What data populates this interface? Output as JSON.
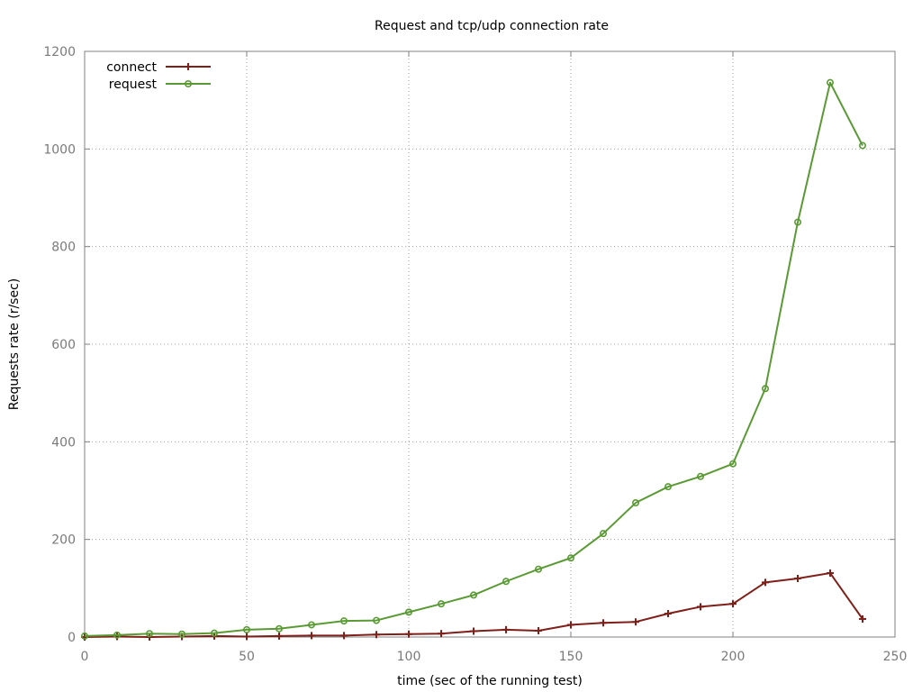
{
  "chart_data": {
    "type": "line",
    "title": "Request and tcp/udp connection rate",
    "xlabel": "time (sec of the running test)",
    "ylabel": "Requests rate (r/sec)",
    "xlim": [
      0,
      250
    ],
    "ylim": [
      0,
      1200
    ],
    "xticks": [
      0,
      50,
      100,
      150,
      200,
      250
    ],
    "yticks": [
      0,
      200,
      400,
      600,
      800,
      1000,
      1200
    ],
    "grid": true,
    "legend_position": "top-left",
    "x": [
      0,
      10,
      20,
      30,
      40,
      50,
      60,
      70,
      80,
      90,
      100,
      110,
      120,
      130,
      140,
      150,
      160,
      170,
      180,
      190,
      200,
      210,
      220,
      230,
      240
    ],
    "series": [
      {
        "name": "connect",
        "color": "#7f1f1a",
        "marker": "plus",
        "values": [
          0,
          1,
          0,
          1,
          2,
          1,
          2,
          3,
          3,
          5,
          6,
          7,
          12,
          15,
          13,
          25,
          29,
          31,
          48,
          62,
          68,
          112,
          120,
          131,
          37
        ]
      },
      {
        "name": "request",
        "color": "#5a9a35",
        "marker": "circle",
        "values": [
          2,
          4,
          7,
          6,
          8,
          15,
          17,
          25,
          33,
          34,
          51,
          68,
          86,
          114,
          139,
          162,
          212,
          275,
          308,
          329,
          355,
          509,
          850,
          1136,
          1007
        ]
      }
    ]
  }
}
